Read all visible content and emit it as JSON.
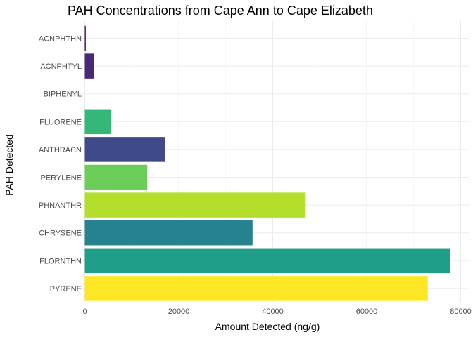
{
  "chart_data": {
    "type": "bar",
    "orientation": "horizontal",
    "title": "PAH Concentrations from Cape Ann to Cape Elizabeth",
    "xlabel": "Amount Detected (ng/g)",
    "ylabel": "PAH Detected",
    "xlim": [
      0,
      80000
    ],
    "xticks": [
      0,
      20000,
      40000,
      60000,
      80000
    ],
    "xtick_labels": [
      "0",
      "20000",
      "40000",
      "60000",
      "80000"
    ],
    "grid": true,
    "legend": "none",
    "categories": [
      "ACNPHTHN",
      "ACNPHTYL",
      "BIPHENYL",
      "FLUORENE",
      "ANTHRACN",
      "PERYLENE",
      "PHNANTHR",
      "CHRYSENE",
      "FLORNTHN",
      "PYRENE"
    ],
    "values": [
      200,
      2000,
      0,
      5600,
      17000,
      13300,
      47000,
      35700,
      77700,
      73000
    ],
    "colors": [
      "#440154",
      "#482878",
      "#3E4A89",
      "#35B779",
      "#3E4A89",
      "#6DCD59",
      "#B4DE2C",
      "#26828E",
      "#1F9E89",
      "#FDE725"
    ]
  }
}
